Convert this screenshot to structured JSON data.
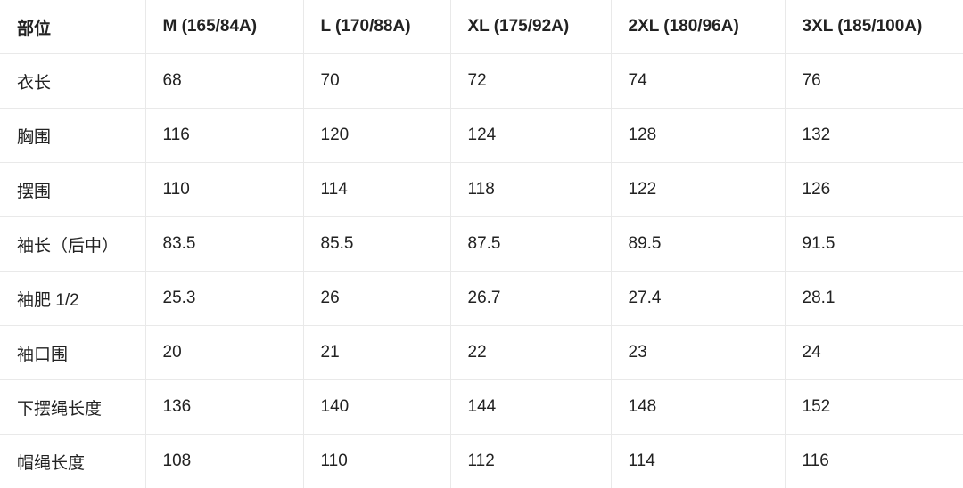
{
  "table": {
    "header": [
      "部位",
      "M (165/84A)",
      "L (170/88A)",
      "XL (175/92A)",
      "2XL (180/96A)",
      "3XL (185/100A)"
    ],
    "rows": [
      [
        "衣长",
        68,
        70,
        72,
        74,
        76
      ],
      [
        "胸围",
        116,
        120,
        124,
        128,
        132
      ],
      [
        "摆围",
        110,
        114,
        118,
        122,
        126
      ],
      [
        "袖长（后中）",
        83.5,
        85.5,
        87.5,
        89.5,
        91.5
      ],
      [
        "袖肥 1/2",
        25.3,
        26,
        26.7,
        27.4,
        28.1
      ],
      [
        "袖口围",
        20,
        21,
        22,
        23,
        24
      ],
      [
        "下摆绳长度",
        136,
        140,
        144,
        148,
        152
      ],
      [
        "帽绳长度",
        108,
        110,
        112,
        114,
        116
      ]
    ]
  }
}
